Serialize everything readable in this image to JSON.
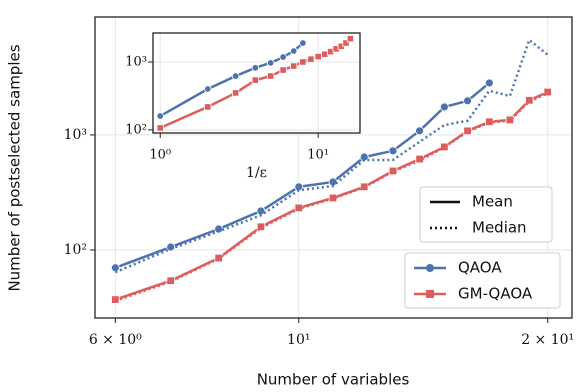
{
  "chart_data": [
    {
      "type": "line",
      "xlabel": "Number of variables",
      "ylabel": "Number of postselected samples",
      "xscale": "log",
      "yscale": "log",
      "grid": true,
      "xlim": [
        5.67,
        21.4
      ],
      "ylim": [
        25.6,
        10600
      ],
      "xticks": [
        {
          "value": 6,
          "label": "6 × 10⁰"
        },
        {
          "value": 10,
          "label": "10¹"
        },
        {
          "value": 20,
          "label": "2 × 10¹"
        }
      ],
      "yticks": [
        {
          "value": 100,
          "label": "10²"
        },
        {
          "value": 1000,
          "label": "10³"
        }
      ],
      "style_legend": [
        "Mean",
        "Median"
      ],
      "series": [
        {
          "name": "QAOA",
          "color": "#4c72b0",
          "style": "Mean",
          "marker": "circle",
          "x": [
            6,
            7,
            8,
            9,
            10,
            11,
            12,
            13,
            14,
            15,
            16,
            17
          ],
          "values": [
            70,
            106,
            152,
            218,
            354,
            390,
            643,
            727,
            1085,
            1750,
            1980,
            2830
          ]
        },
        {
          "name": "GM-QAOA",
          "color": "#dd5c5c",
          "style": "Mean",
          "marker": "square",
          "x": [
            6,
            7,
            8,
            9,
            10,
            11,
            12,
            13,
            14,
            15,
            16,
            17,
            18,
            19,
            20
          ],
          "values": [
            37,
            54,
            85,
            159,
            232,
            283,
            354,
            486,
            617,
            786,
            1085,
            1300,
            1350,
            2000,
            2360
          ]
        },
        {
          "name": "QAOA",
          "color": "#4c72b0",
          "style": "Median",
          "x": [
            6,
            7,
            8,
            9,
            10,
            11,
            12,
            13,
            14,
            15,
            16,
            17,
            18,
            19,
            20
          ],
          "values": [
            64,
            102,
            145,
            200,
            330,
            360,
            606,
            606,
            870,
            1220,
            1330,
            2420,
            2180,
            6700,
            4970
          ]
        },
        {
          "name": "GM-QAOA",
          "color": "#dd5c5c",
          "style": "Median",
          "x": [
            6,
            7,
            8,
            9,
            10,
            11,
            12,
            13,
            14,
            15,
            16,
            17,
            18,
            19,
            20
          ],
          "values": [
            36,
            53,
            84,
            155,
            228,
            280,
            350,
            480,
            600,
            780,
            1070,
            1280,
            1330,
            1950,
            2300
          ]
        }
      ]
    },
    {
      "type": "line",
      "xlabel": "1/ε",
      "xscale": "log",
      "yscale": "log",
      "grid": true,
      "xlim": [
        0.9,
        18.4
      ],
      "ylim": [
        90,
        2670
      ],
      "xticks": [
        {
          "value": 1,
          "label": "10⁰"
        },
        {
          "value": 10,
          "label": "10¹"
        }
      ],
      "yticks": [
        {
          "value": 100,
          "label": "10²"
        },
        {
          "value": 1000,
          "label": "10³"
        }
      ],
      "series": [
        {
          "color": "#4c72b0",
          "style": "Mean",
          "marker": "circle",
          "x": [
            1,
            2,
            3,
            4,
            5,
            6,
            7,
            8
          ],
          "values": [
            160,
            400,
            620,
            820,
            970,
            1180,
            1450,
            1900
          ]
        },
        {
          "color": "#dd5c5c",
          "style": "Mean",
          "marker": "square",
          "x": [
            1,
            2,
            3,
            4,
            5,
            6,
            7,
            8,
            9,
            10,
            11,
            12,
            13,
            14,
            15,
            16
          ],
          "values": [
            107,
            218,
            350,
            540,
            620,
            760,
            870,
            1000,
            1100,
            1200,
            1300,
            1420,
            1560,
            1700,
            1900,
            2200
          ]
        }
      ]
    }
  ]
}
